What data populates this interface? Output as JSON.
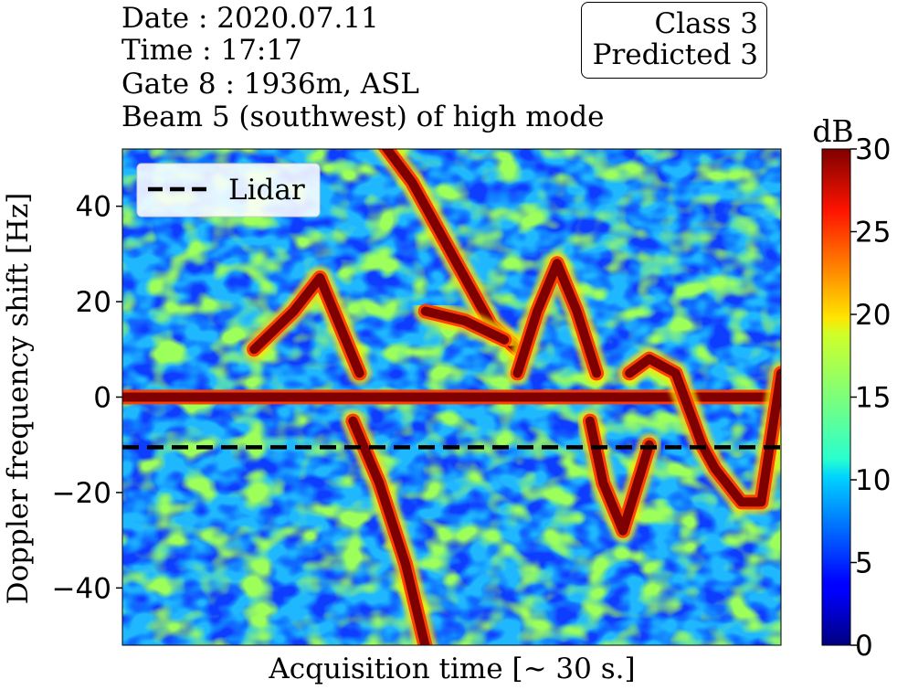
{
  "header": {
    "date": "Date : 2020.07.11",
    "time": "Time : 17:17",
    "gate": "Gate 8 : 1936m, ASL",
    "beam": "Beam 5 (southwest) of high mode"
  },
  "classbox": {
    "class_text": "Class 3",
    "predicted_text": "Predicted 3"
  },
  "chart_data": {
    "type": "heatmap",
    "xlabel": "Acquisition time [~ 30 s.]",
    "ylabel": "Doppler frequency shift [Hz]",
    "ylim": [
      -52,
      52
    ],
    "yticks": [
      40,
      20,
      0,
      -20,
      -40
    ],
    "ytick_labels": [
      "40",
      "20",
      "0",
      "−20",
      "−40"
    ],
    "xticks": [],
    "colormap": "jet",
    "colorbar": {
      "label": "dB",
      "range": [
        0,
        30
      ],
      "ticks": [
        0,
        5,
        10,
        15,
        20,
        25,
        30
      ],
      "tick_labels": [
        "0",
        "5",
        "10",
        "15",
        "20",
        "25",
        "30"
      ]
    },
    "legend": {
      "position": "top-left",
      "entries": [
        {
          "label": "Lidar",
          "style": "dashed",
          "color": "#000000"
        }
      ]
    },
    "lidar_line_y": -10.5,
    "features": [
      {
        "t": [
          0.0,
          0.15,
          0.3,
          0.45,
          0.6,
          0.75,
          0.9,
          1.0
        ],
        "y": [
          0,
          0,
          0,
          0,
          0,
          0,
          0,
          0
        ]
      },
      {
        "t": [
          0.38,
          0.44,
          0.5,
          0.56,
          0.6
        ],
        "y": [
          56,
          45,
          30,
          15,
          10
        ]
      },
      {
        "t": [
          0.46,
          0.52,
          0.58
        ],
        "y": [
          18,
          16,
          12
        ]
      },
      {
        "t": [
          0.6,
          0.63,
          0.66,
          0.69,
          0.72
        ],
        "y": [
          5,
          18,
          28,
          18,
          5
        ]
      },
      {
        "t": [
          0.71,
          0.73,
          0.76,
          0.8
        ],
        "y": [
          -5,
          -18,
          -28,
          -10
        ]
      },
      {
        "t": [
          0.77,
          0.8,
          0.84,
          0.88,
          0.9,
          0.94,
          0.97,
          1.0
        ],
        "y": [
          5,
          8,
          5,
          -10,
          -15,
          -22,
          -22,
          5
        ]
      },
      {
        "t": [
          0.2,
          0.26,
          0.3,
          0.36
        ],
        "y": [
          10,
          18,
          25,
          5
        ]
      },
      {
        "t": [
          0.35,
          0.39,
          0.43,
          0.47
        ],
        "y": [
          -5,
          -18,
          -35,
          -58
        ]
      }
    ]
  }
}
